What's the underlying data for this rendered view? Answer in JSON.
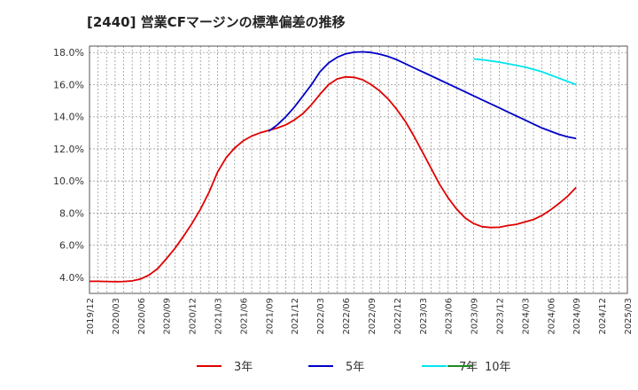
{
  "chart_data": {
    "type": "line",
    "title": "[2440]  営業CFマージンの標準偏差の推移",
    "xlabel": "",
    "ylabel": "",
    "x_ticks": [
      "2019/12",
      "2020/03",
      "2020/06",
      "2020/09",
      "2020/12",
      "2021/03",
      "2021/06",
      "2021/09",
      "2021/12",
      "2022/03",
      "2022/06",
      "2022/09",
      "2022/12",
      "2023/03",
      "2023/06",
      "2023/09",
      "2023/12",
      "2024/03",
      "2024/06",
      "2024/09",
      "2024/12",
      "2025/03"
    ],
    "y_ticks": [
      "4.0%",
      "6.0%",
      "8.0%",
      "10.0%",
      "12.0%",
      "14.0%",
      "16.0%",
      "18.0%"
    ],
    "y_tick_values": [
      4,
      6,
      8,
      10,
      12,
      14,
      16,
      18
    ],
    "ylim": [
      3.0,
      18.4
    ],
    "grid": true,
    "legend_position": "bottom",
    "series": [
      {
        "name": "3年",
        "color": "#e00000",
        "x": [
          "2019/12",
          "2020/01",
          "2020/02",
          "2020/03",
          "2020/04",
          "2020/05",
          "2020/06",
          "2020/07",
          "2020/08",
          "2020/09",
          "2020/10",
          "2020/11",
          "2020/12",
          "2021/01",
          "2021/02",
          "2021/03",
          "2021/04",
          "2021/05",
          "2021/06",
          "2021/07",
          "2021/08",
          "2021/09",
          "2021/10",
          "2021/11",
          "2021/12",
          "2022/01",
          "2022/02",
          "2022/03",
          "2022/04",
          "2022/05",
          "2022/06",
          "2022/07",
          "2022/08",
          "2022/09",
          "2022/10",
          "2022/11",
          "2022/12",
          "2023/01",
          "2023/02",
          "2023/03",
          "2023/04",
          "2023/05",
          "2023/06",
          "2023/07",
          "2023/08",
          "2023/09",
          "2023/10",
          "2023/11",
          "2023/12",
          "2024/01",
          "2024/02",
          "2024/03",
          "2024/04",
          "2024/05",
          "2024/06",
          "2024/07",
          "2024/08",
          "2024/09"
        ],
        "values": [
          3.75,
          3.75,
          3.74,
          3.73,
          3.74,
          3.78,
          3.9,
          4.15,
          4.55,
          5.15,
          5.8,
          6.55,
          7.35,
          8.25,
          9.3,
          10.55,
          11.45,
          12.05,
          12.5,
          12.8,
          13.0,
          13.15,
          13.3,
          13.5,
          13.8,
          14.2,
          14.75,
          15.4,
          16.0,
          16.35,
          16.48,
          16.45,
          16.3,
          16.0,
          15.6,
          15.1,
          14.45,
          13.7,
          12.8,
          11.8,
          10.8,
          9.8,
          8.95,
          8.25,
          7.7,
          7.35,
          7.15,
          7.1,
          7.12,
          7.22,
          7.3,
          7.45,
          7.6,
          7.85,
          8.2,
          8.6,
          9.05,
          9.6
        ]
      },
      {
        "name": "5年",
        "color": "#0000c8",
        "x": [
          "2021/09",
          "2021/10",
          "2021/11",
          "2021/12",
          "2022/01",
          "2022/02",
          "2022/03",
          "2022/04",
          "2022/05",
          "2022/06",
          "2022/07",
          "2022/08",
          "2022/09",
          "2022/10",
          "2022/11",
          "2022/12",
          "2023/01",
          "2023/02",
          "2023/03",
          "2023/04",
          "2023/05",
          "2023/06",
          "2023/07",
          "2023/08",
          "2023/09",
          "2023/10",
          "2023/11",
          "2023/12",
          "2024/01",
          "2024/02",
          "2024/03",
          "2024/04",
          "2024/05",
          "2024/06",
          "2024/07",
          "2024/08",
          "2024/09"
        ],
        "values": [
          13.1,
          13.5,
          14.0,
          14.6,
          15.3,
          16.0,
          16.8,
          17.35,
          17.7,
          17.92,
          18.02,
          18.04,
          18.0,
          17.9,
          17.75,
          17.55,
          17.3,
          17.05,
          16.8,
          16.55,
          16.3,
          16.05,
          15.8,
          15.55,
          15.3,
          15.05,
          14.8,
          14.55,
          14.3,
          14.05,
          13.8,
          13.55,
          13.3,
          13.1,
          12.9,
          12.75,
          12.65
        ]
      },
      {
        "name": "7年",
        "color": "#00e5ee",
        "x": [
          "2023/09",
          "2023/10",
          "2023/11",
          "2023/12",
          "2024/01",
          "2024/02",
          "2024/03",
          "2024/04",
          "2024/05",
          "2024/06",
          "2024/07",
          "2024/08",
          "2024/09"
        ],
        "values": [
          17.6,
          17.55,
          17.48,
          17.4,
          17.3,
          17.2,
          17.1,
          16.95,
          16.8,
          16.6,
          16.4,
          16.2,
          16.0
        ]
      },
      {
        "name": "10年",
        "color": "#228b22",
        "x": [],
        "values": []
      }
    ]
  }
}
